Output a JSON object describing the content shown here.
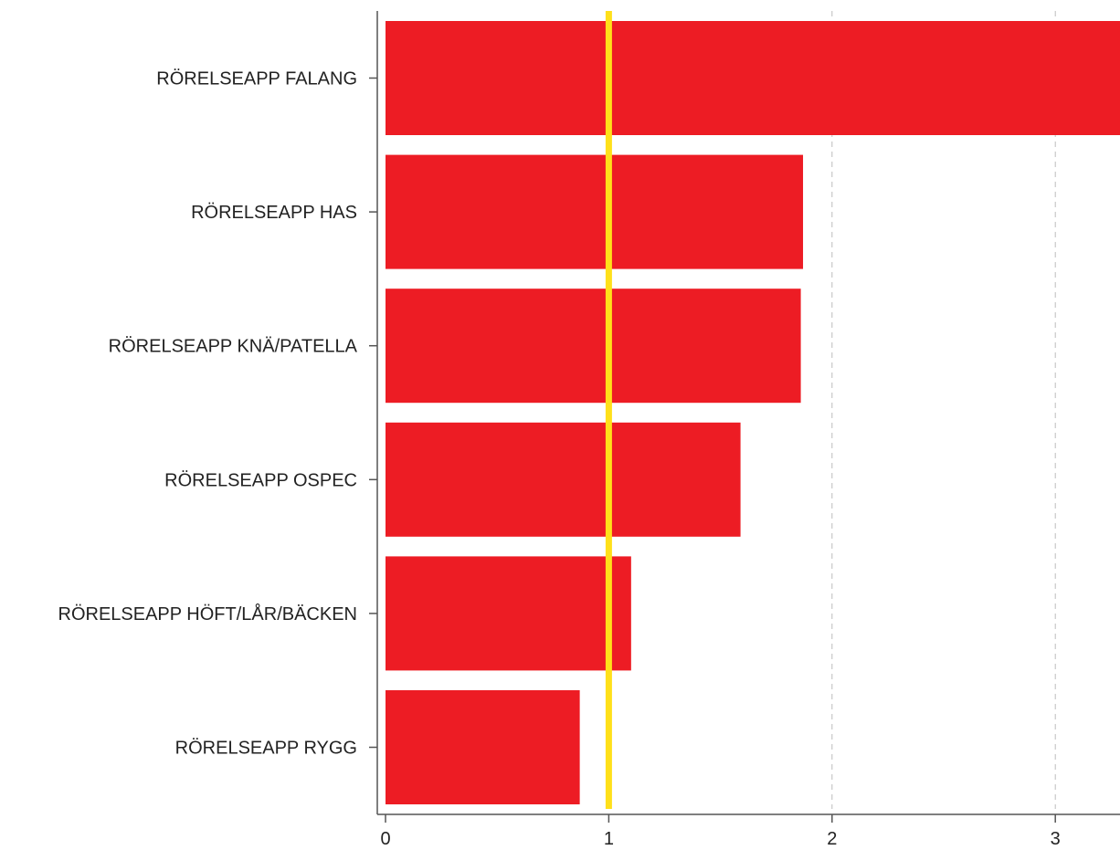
{
  "chart_data": {
    "type": "bar",
    "orientation": "horizontal",
    "title": "",
    "xlabel": "",
    "ylabel": "",
    "categories": [
      "RÖRELSEAPP FALANG",
      "RÖRELSEAPP HAS",
      "RÖRELSEAPP KNÄ/PATELLA",
      "RÖRELSEAPP OSPEC",
      "RÖRELSEAPP HÖFT/LÅR/BÄCKEN",
      "RÖRELSEAPP RYGG"
    ],
    "values": [
      3.3,
      1.87,
      1.86,
      1.59,
      1.1,
      0.87
    ],
    "xlim": [
      0,
      3.28
    ],
    "xticks": [
      0,
      1,
      2,
      3
    ],
    "xtick_labels": [
      "0",
      "1",
      "2",
      "3"
    ],
    "reference_line": {
      "value": 1,
      "color": "#FFE01A"
    },
    "bar_color": "#ED1C24",
    "grid": "vertical dashed",
    "legend": "none"
  }
}
